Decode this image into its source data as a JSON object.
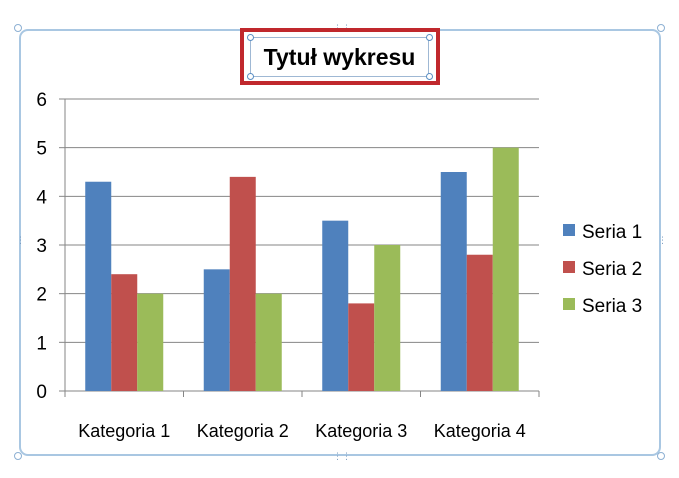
{
  "chart_data": {
    "type": "bar",
    "title": "Tytuł wykresu",
    "categories": [
      "Kategoria 1",
      "Kategoria 2",
      "Kategoria 3",
      "Kategoria 4"
    ],
    "series": [
      {
        "name": "Seria 1",
        "values": [
          4.3,
          2.5,
          3.5,
          4.5
        ],
        "color": "#4f81bd"
      },
      {
        "name": "Seria 2",
        "values": [
          2.4,
          4.4,
          1.8,
          2.8
        ],
        "color": "#c0504d"
      },
      {
        "name": "Seria 3",
        "values": [
          2,
          2,
          3,
          5
        ],
        "color": "#9bbb59"
      }
    ],
    "y_ticks": [
      "0",
      "1",
      "2",
      "3",
      "4",
      "5",
      "6"
    ],
    "ylim": [
      0,
      6
    ],
    "grid": true,
    "legend_position": "right",
    "title_selected": true
  },
  "colors": {
    "title_highlight": "#c0282d",
    "frame_border": "#a9c7e2",
    "gridline": "#868686"
  }
}
